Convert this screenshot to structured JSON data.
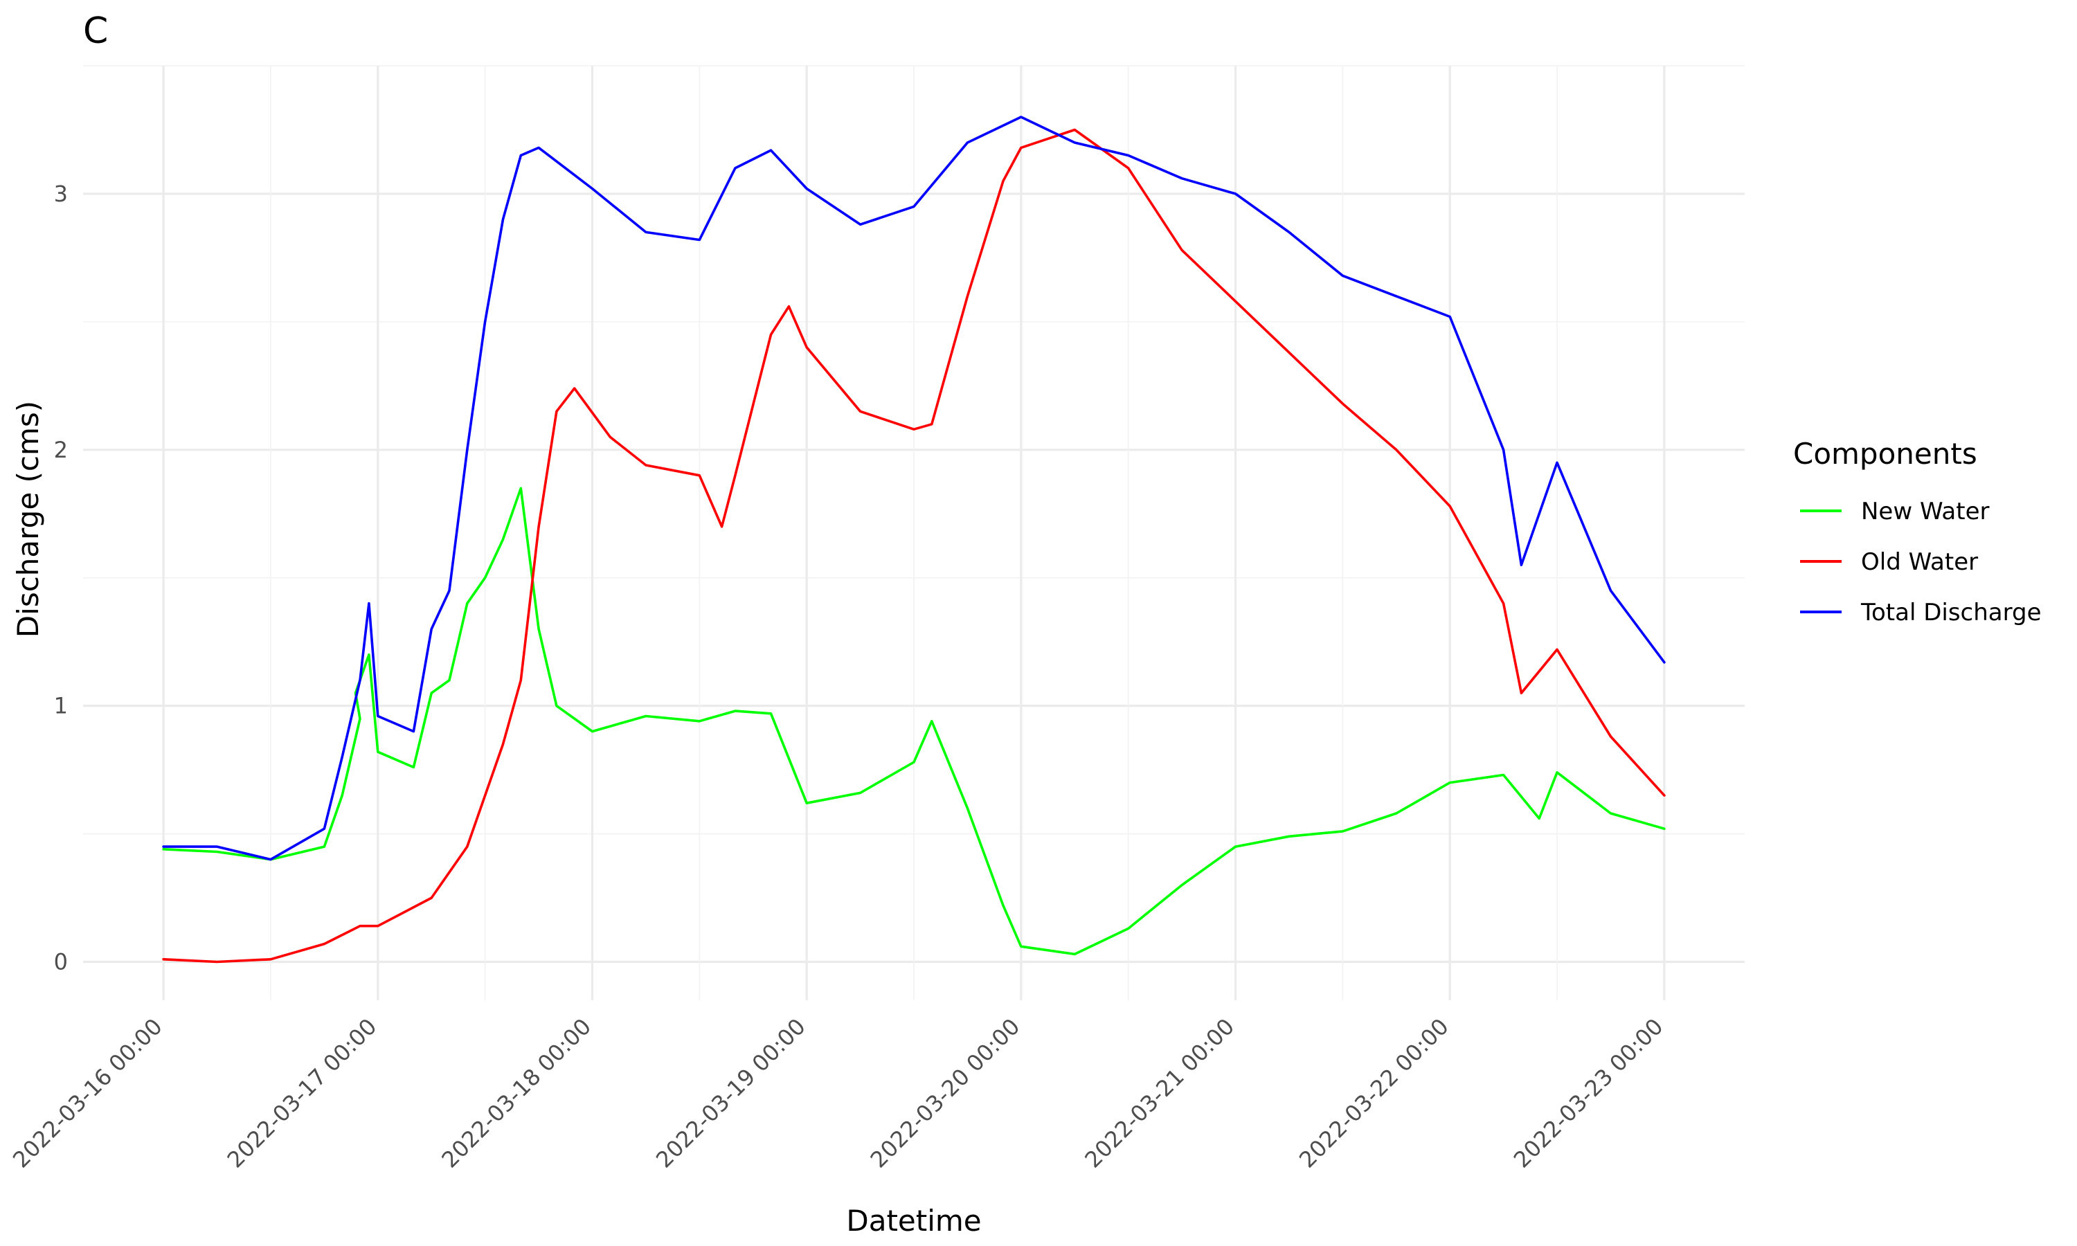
{
  "chart_data": {
    "type": "line",
    "title": "C",
    "xlabel": "Datetime",
    "ylabel": "Discharge (cms)",
    "x_ticks": [
      "2022-03-16 00:00",
      "2022-03-17 00:00",
      "2022-03-18 00:00",
      "2022-03-19 00:00",
      "2022-03-20 00:00",
      "2022-03-21 00:00",
      "2022-03-22 00:00",
      "2022-03-23 00:00"
    ],
    "xlim": [
      "2022-03-15 15:00",
      "2022-03-23 09:00"
    ],
    "y_ticks": [
      "0",
      "1",
      "2",
      "3"
    ],
    "ylim": [
      -0.15,
      3.5
    ],
    "grid": true,
    "legend": {
      "title": "Components",
      "position": "right"
    },
    "series": [
      {
        "name": "New Water",
        "color": "#00ff00",
        "points": [
          [
            "2022-03-16 00:00",
            0.44
          ],
          [
            "2022-03-16 06:00",
            0.43
          ],
          [
            "2022-03-16 12:00",
            0.4
          ],
          [
            "2022-03-16 18:00",
            0.45
          ],
          [
            "2022-03-16 20:00",
            0.65
          ],
          [
            "2022-03-16 22:00",
            0.95
          ],
          [
            "2022-03-16 21:30",
            1.05
          ],
          [
            "2022-03-16 23:00",
            1.2
          ],
          [
            "2022-03-17 00:00",
            0.82
          ],
          [
            "2022-03-17 04:00",
            0.76
          ],
          [
            "2022-03-17 06:00",
            1.05
          ],
          [
            "2022-03-17 08:00",
            1.1
          ],
          [
            "2022-03-17 10:00",
            1.4
          ],
          [
            "2022-03-17 12:00",
            1.5
          ],
          [
            "2022-03-17 14:00",
            1.65
          ],
          [
            "2022-03-17 16:00",
            1.85
          ],
          [
            "2022-03-17 18:00",
            1.3
          ],
          [
            "2022-03-17 20:00",
            1.0
          ],
          [
            "2022-03-18 00:00",
            0.9
          ],
          [
            "2022-03-18 06:00",
            0.96
          ],
          [
            "2022-03-18 12:00",
            0.94
          ],
          [
            "2022-03-18 16:00",
            0.98
          ],
          [
            "2022-03-18 20:00",
            0.97
          ],
          [
            "2022-03-19 00:00",
            0.62
          ],
          [
            "2022-03-19 06:00",
            0.66
          ],
          [
            "2022-03-19 12:00",
            0.78
          ],
          [
            "2022-03-19 14:00",
            0.94
          ],
          [
            "2022-03-19 18:00",
            0.6
          ],
          [
            "2022-03-19 22:00",
            0.22
          ],
          [
            "2022-03-20 00:00",
            0.06
          ],
          [
            "2022-03-20 06:00",
            0.03
          ],
          [
            "2022-03-20 12:00",
            0.13
          ],
          [
            "2022-03-20 18:00",
            0.3
          ],
          [
            "2022-03-21 00:00",
            0.45
          ],
          [
            "2022-03-21 06:00",
            0.49
          ],
          [
            "2022-03-21 12:00",
            0.51
          ],
          [
            "2022-03-21 18:00",
            0.58
          ],
          [
            "2022-03-22 00:00",
            0.7
          ],
          [
            "2022-03-22 06:00",
            0.73
          ],
          [
            "2022-03-22 10:00",
            0.56
          ],
          [
            "2022-03-22 12:00",
            0.74
          ],
          [
            "2022-03-22 18:00",
            0.58
          ],
          [
            "2022-03-23 00:00",
            0.52
          ]
        ]
      },
      {
        "name": "Old Water",
        "color": "#ff0000",
        "points": [
          [
            "2022-03-16 00:00",
            0.01
          ],
          [
            "2022-03-16 06:00",
            0.0
          ],
          [
            "2022-03-16 12:00",
            0.01
          ],
          [
            "2022-03-16 18:00",
            0.07
          ],
          [
            "2022-03-16 22:00",
            0.14
          ],
          [
            "2022-03-17 00:00",
            0.14
          ],
          [
            "2022-03-17 06:00",
            0.25
          ],
          [
            "2022-03-17 10:00",
            0.45
          ],
          [
            "2022-03-17 14:00",
            0.85
          ],
          [
            "2022-03-17 16:00",
            1.1
          ],
          [
            "2022-03-17 18:00",
            1.7
          ],
          [
            "2022-03-17 20:00",
            2.15
          ],
          [
            "2022-03-17 22:00",
            2.24
          ],
          [
            "2022-03-18 02:00",
            2.05
          ],
          [
            "2022-03-18 06:00",
            1.94
          ],
          [
            "2022-03-18 12:00",
            1.9
          ],
          [
            "2022-03-18 14:30",
            1.7
          ],
          [
            "2022-03-18 16:00",
            1.9
          ],
          [
            "2022-03-18 20:00",
            2.45
          ],
          [
            "2022-03-18 22:00",
            2.56
          ],
          [
            "2022-03-19 00:00",
            2.4
          ],
          [
            "2022-03-19 06:00",
            2.15
          ],
          [
            "2022-03-19 12:00",
            2.08
          ],
          [
            "2022-03-19 14:00",
            2.1
          ],
          [
            "2022-03-19 18:00",
            2.6
          ],
          [
            "2022-03-19 22:00",
            3.05
          ],
          [
            "2022-03-20 00:00",
            3.18
          ],
          [
            "2022-03-20 06:00",
            3.25
          ],
          [
            "2022-03-20 12:00",
            3.1
          ],
          [
            "2022-03-20 18:00",
            2.78
          ],
          [
            "2022-03-21 00:00",
            2.58
          ],
          [
            "2022-03-21 06:00",
            2.38
          ],
          [
            "2022-03-21 12:00",
            2.18
          ],
          [
            "2022-03-21 18:00",
            2.0
          ],
          [
            "2022-03-22 00:00",
            1.78
          ],
          [
            "2022-03-22 06:00",
            1.4
          ],
          [
            "2022-03-22 08:00",
            1.05
          ],
          [
            "2022-03-22 12:00",
            1.22
          ],
          [
            "2022-03-22 18:00",
            0.88
          ],
          [
            "2022-03-23 00:00",
            0.65
          ]
        ]
      },
      {
        "name": "Total Discharge",
        "color": "#0000ff",
        "points": [
          [
            "2022-03-16 00:00",
            0.45
          ],
          [
            "2022-03-16 06:00",
            0.45
          ],
          [
            "2022-03-16 12:00",
            0.4
          ],
          [
            "2022-03-16 18:00",
            0.52
          ],
          [
            "2022-03-16 20:00",
            0.8
          ],
          [
            "2022-03-16 22:00",
            1.1
          ],
          [
            "2022-03-16 23:00",
            1.4
          ],
          [
            "2022-03-17 00:00",
            0.96
          ],
          [
            "2022-03-17 04:00",
            0.9
          ],
          [
            "2022-03-17 06:00",
            1.3
          ],
          [
            "2022-03-17 08:00",
            1.45
          ],
          [
            "2022-03-17 10:00",
            2.0
          ],
          [
            "2022-03-17 12:00",
            2.5
          ],
          [
            "2022-03-17 14:00",
            2.9
          ],
          [
            "2022-03-17 16:00",
            3.15
          ],
          [
            "2022-03-17 18:00",
            3.18
          ],
          [
            "2022-03-18 00:00",
            3.02
          ],
          [
            "2022-03-18 06:00",
            2.85
          ],
          [
            "2022-03-18 12:00",
            2.82
          ],
          [
            "2022-03-18 16:00",
            3.1
          ],
          [
            "2022-03-18 20:00",
            3.17
          ],
          [
            "2022-03-19 00:00",
            3.02
          ],
          [
            "2022-03-19 06:00",
            2.88
          ],
          [
            "2022-03-19 12:00",
            2.95
          ],
          [
            "2022-03-19 18:00",
            3.2
          ],
          [
            "2022-03-20 00:00",
            3.3
          ],
          [
            "2022-03-20 06:00",
            3.2
          ],
          [
            "2022-03-20 12:00",
            3.15
          ],
          [
            "2022-03-20 18:00",
            3.06
          ],
          [
            "2022-03-21 00:00",
            3.0
          ],
          [
            "2022-03-21 06:00",
            2.85
          ],
          [
            "2022-03-21 12:00",
            2.68
          ],
          [
            "2022-03-21 18:00",
            2.6
          ],
          [
            "2022-03-22 00:00",
            2.52
          ],
          [
            "2022-03-22 06:00",
            2.0
          ],
          [
            "2022-03-22 08:00",
            1.55
          ],
          [
            "2022-03-22 12:00",
            1.95
          ],
          [
            "2022-03-22 18:00",
            1.45
          ],
          [
            "2022-03-23 00:00",
            1.17
          ]
        ]
      }
    ]
  }
}
